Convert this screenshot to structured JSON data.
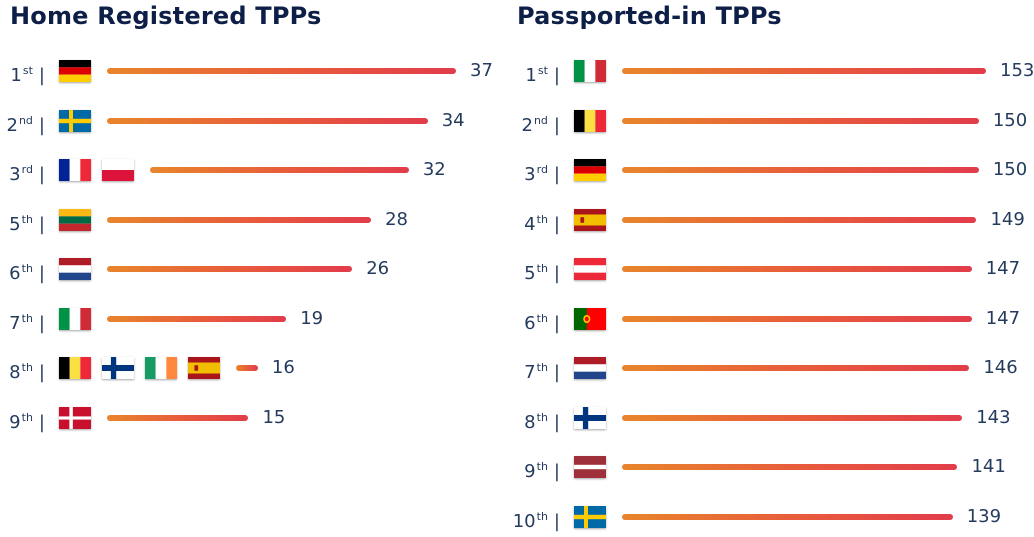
{
  "chart_data": [
    {
      "type": "bar",
      "orientation": "horizontal",
      "title": "Home Registered TPPs",
      "rows": [
        {
          "rank": "1",
          "suffix": "st",
          "flags": [
            "germany-flag-icon"
          ],
          "value": 37
        },
        {
          "rank": "2",
          "suffix": "nd",
          "flags": [
            "sweden-flag-icon"
          ],
          "value": 34
        },
        {
          "rank": "3",
          "suffix": "rd",
          "flags": [
            "france-flag-icon",
            "poland-flag-icon"
          ],
          "value": 32
        },
        {
          "rank": "5",
          "suffix": "th",
          "flags": [
            "lithuania-flag-icon"
          ],
          "value": 28
        },
        {
          "rank": "6",
          "suffix": "th",
          "flags": [
            "netherlands-flag-icon"
          ],
          "value": 26
        },
        {
          "rank": "7",
          "suffix": "th",
          "flags": [
            "italy-flag-icon"
          ],
          "value": 19
        },
        {
          "rank": "8",
          "suffix": "th",
          "flags": [
            "belgium-flag-icon",
            "finland-flag-icon",
            "ireland-flag-icon",
            "spain-flag-icon"
          ],
          "value": 16
        },
        {
          "rank": "9",
          "suffix": "th",
          "flags": [
            "denmark-flag-icon"
          ],
          "value": 15
        }
      ]
    },
    {
      "type": "bar",
      "orientation": "horizontal",
      "title": "Passported-in TPPs",
      "rows": [
        {
          "rank": "1",
          "suffix": "st",
          "flags": [
            "italy-flag-icon"
          ],
          "value": 153
        },
        {
          "rank": "2",
          "suffix": "nd",
          "flags": [
            "belgium-flag-icon"
          ],
          "value": 150
        },
        {
          "rank": "3",
          "suffix": "rd",
          "flags": [
            "germany-flag-icon"
          ],
          "value": 150
        },
        {
          "rank": "4",
          "suffix": "th",
          "flags": [
            "spain-flag-icon"
          ],
          "value": 149
        },
        {
          "rank": "5",
          "suffix": "th",
          "flags": [
            "austria-flag-icon"
          ],
          "value": 147
        },
        {
          "rank": "6",
          "suffix": "th",
          "flags": [
            "portugal-flag-icon"
          ],
          "value": 147
        },
        {
          "rank": "7",
          "suffix": "th",
          "flags": [
            "netherlands-flag-icon"
          ],
          "value": 146
        },
        {
          "rank": "8",
          "suffix": "th",
          "flags": [
            "finland-flag-icon"
          ],
          "value": 143
        },
        {
          "rank": "9",
          "suffix": "th",
          "flags": [
            "latvia-flag-icon"
          ],
          "value": 141
        },
        {
          "rank": "10",
          "suffix": "th",
          "flags": [
            "sweden-flag-icon"
          ],
          "value": 139
        }
      ]
    }
  ],
  "colors": {
    "title": "#0d1f47",
    "text": "#243b5e",
    "bar_start": "#e8852c",
    "bar_end": "#e23c4b"
  }
}
